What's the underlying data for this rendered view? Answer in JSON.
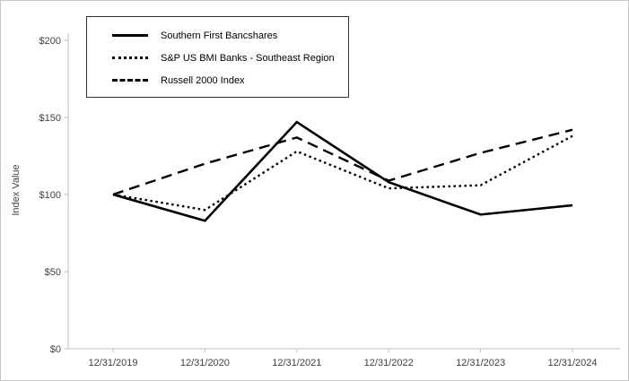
{
  "chart_data": {
    "type": "line",
    "title": "",
    "xlabel": "",
    "ylabel": "Index Value",
    "categories": [
      "12/31/2019",
      "12/31/2020",
      "12/31/2021",
      "12/31/2022",
      "12/31/2023",
      "12/31/2024"
    ],
    "series": [
      {
        "name": "Southern First Bancshares",
        "style": "solid",
        "values": [
          100,
          83,
          147,
          108,
          87,
          93
        ]
      },
      {
        "name": "S&P US BMI Banks - Southeast Region",
        "style": "dotted",
        "values": [
          100,
          90,
          128,
          104,
          106,
          138
        ]
      },
      {
        "name": "Russell 2000 Index",
        "style": "dashed",
        "values": [
          100,
          120,
          137,
          109,
          127,
          142
        ]
      }
    ],
    "ylim": [
      0,
      200
    ],
    "yticks": [
      0,
      50,
      100,
      150,
      200
    ],
    "ytick_labels": [
      "$0",
      "$50",
      "$100",
      "$150",
      "$200"
    ],
    "legend_position": "top-left",
    "grid": false,
    "colors": {
      "line": "#000000",
      "axis": "#bfbfbf",
      "text": "#404040"
    }
  }
}
